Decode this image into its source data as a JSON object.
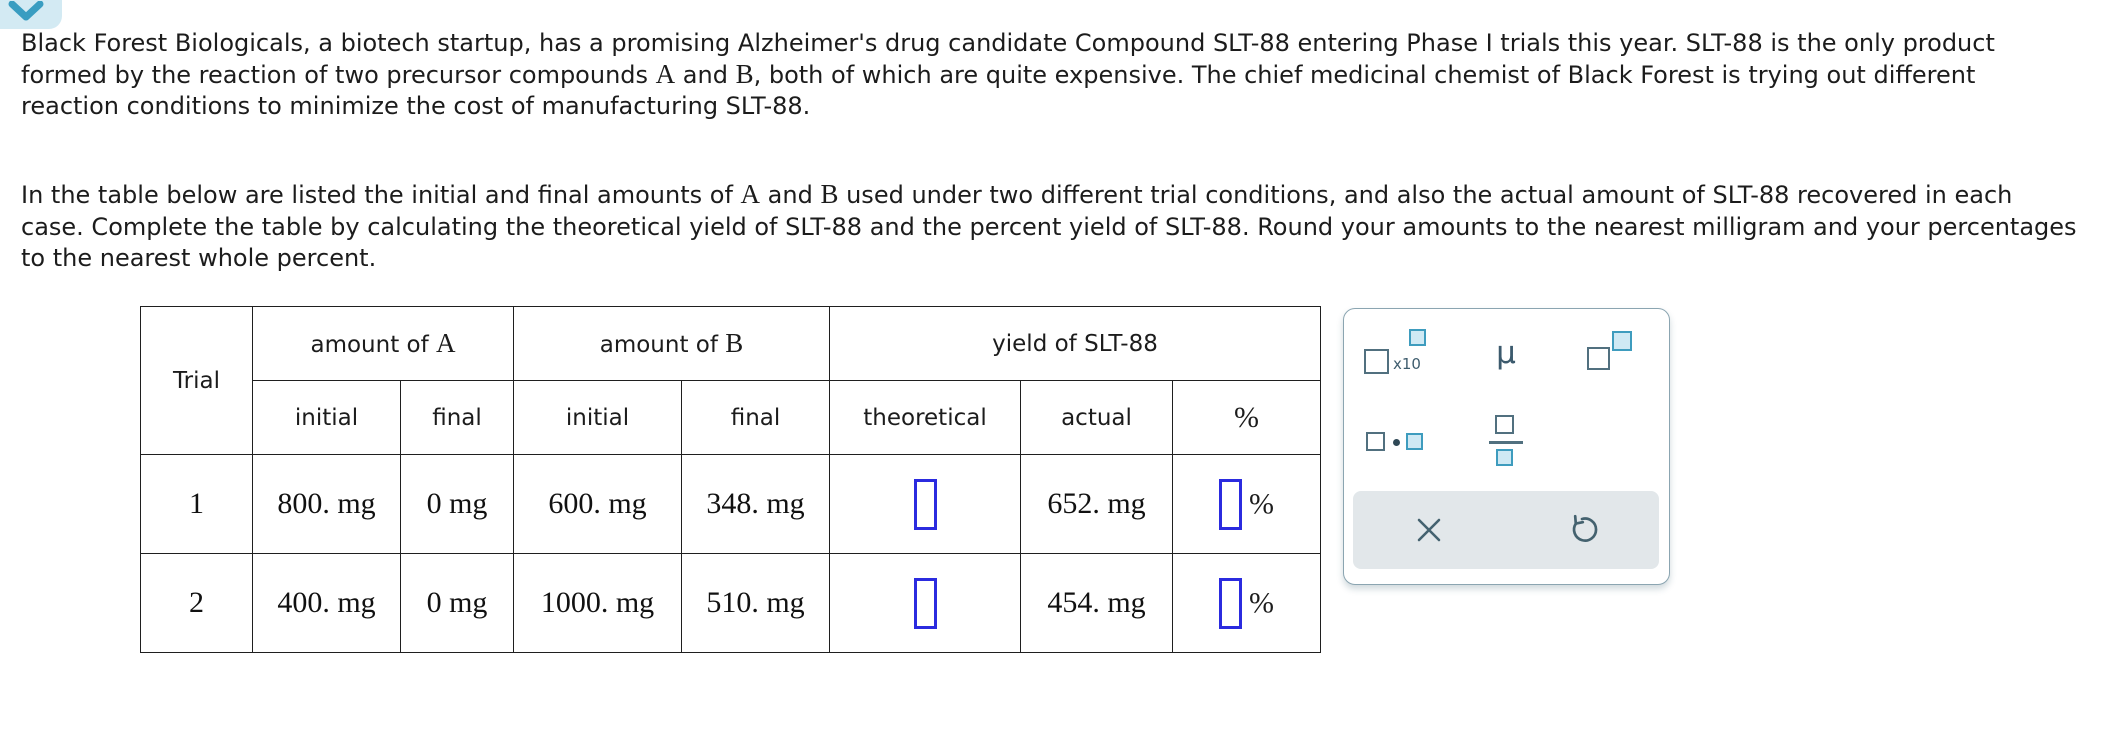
{
  "colors": {
    "accent_teal": "#3e9cbe",
    "badge_bg": "#d3eaf3",
    "icon_fill_blue": "#cfe9f4",
    "icon_stroke_slate": "#51707f",
    "answer_box_blue": "#2b2bdf",
    "panel_border": "#8ba5b1",
    "action_bar_bg": "#e2e7ea",
    "table_border": "#1f1f1f"
  },
  "collapse_toggle": {
    "icon": "chevron-down-icon"
  },
  "problem": {
    "paragraph1": [
      {
        "t": "Black Forest Biologicals, a biotech startup, has a promising Alzheimer's drug candidate Compound SLT-88 entering Phase I trials this year. SLT-88 is the only product formed by the reaction of two precursor compounds "
      },
      {
        "t": "A",
        "m": true
      },
      {
        "t": " and "
      },
      {
        "t": "B",
        "m": true
      },
      {
        "t": ", both of which are quite expensive. The chief medicinal chemist of Black Forest is trying out different reaction conditions to minimize the cost of manufacturing SLT-88."
      }
    ],
    "paragraph2": [
      {
        "t": "In the table below are listed the initial and final amounts of "
      },
      {
        "t": "A",
        "m": true
      },
      {
        "t": " and "
      },
      {
        "t": "B",
        "m": true
      },
      {
        "t": " used under two different trial conditions, and also the actual amount of SLT-88 recovered in each case. Complete the table by calculating the theoretical yield of SLT-88 and the percent yield of SLT-88. Round your amounts to the nearest milligram and your percentages to the nearest whole percent."
      }
    ]
  },
  "table": {
    "header": {
      "trial": "Trial",
      "amount_prefix": "amount of ",
      "compound_a": "A",
      "compound_b": "B",
      "yield_header": "yield of SLT-88",
      "sub": [
        "initial",
        "final",
        "initial",
        "final",
        "theoretical",
        "actual",
        "%"
      ]
    },
    "rows": [
      {
        "trial": "1",
        "a_initial": "800. mg",
        "a_final": "0 mg",
        "b_initial": "600. mg",
        "b_final": "348. mg",
        "theoretical_value": "",
        "actual": "652. mg",
        "percent_value": ""
      },
      {
        "trial": "2",
        "a_initial": "400. mg",
        "a_final": "0 mg",
        "b_initial": "1000. mg",
        "b_final": "510. mg",
        "theoretical_value": "",
        "actual": "454. mg",
        "percent_value": ""
      }
    ],
    "percent_suffix": "%"
  },
  "palette": {
    "sci_notation_label": "x10",
    "mu_label": "μ",
    "icons": {
      "scientific_notation": "blank-times-ten-power-icon",
      "mu": "mu-icon",
      "exponent": "blank-power-icon",
      "multiply": "multiply-dot-icon",
      "fraction": "fraction-icon",
      "clear": "x-clear-icon",
      "undo": "undo-icon"
    }
  }
}
